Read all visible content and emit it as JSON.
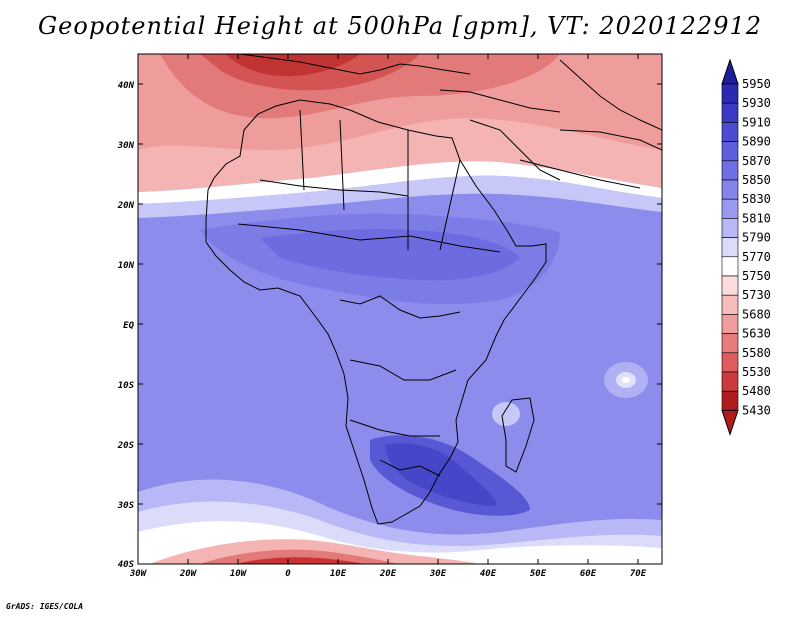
{
  "title": "Geopotential Height at 500hPa [gpm], VT: 2020122912",
  "footer": "GrADS: IGES/COLA",
  "map": {
    "lat_labels": [
      "40N",
      "30N",
      "20N",
      "10N",
      "EQ",
      "10S",
      "20S",
      "30S",
      "40S"
    ],
    "lon_labels": [
      "30W",
      "20W",
      "10W",
      "0",
      "10E",
      "20E",
      "30E",
      "40E",
      "50E",
      "60E",
      "70E"
    ],
    "lat_range": [
      -40,
      45
    ],
    "lon_range": [
      -30,
      75
    ]
  },
  "colorbar": {
    "levels": [
      "5950",
      "5930",
      "5910",
      "5890",
      "5870",
      "5850",
      "5830",
      "5810",
      "5790",
      "5770",
      "5750",
      "5730",
      "5680",
      "5630",
      "5580",
      "5530",
      "5480",
      "5430"
    ],
    "colors": [
      "#1e1e9a",
      "#2a2ab0",
      "#3a3ac4",
      "#4c4cd2",
      "#5e5edc",
      "#7070e4",
      "#8484ea",
      "#9a9af0",
      "#b8b8f6",
      "#dcdcfa",
      "#ffffff",
      "#fcdcdc",
      "#f7bcbc",
      "#f19c9c",
      "#e87c7c",
      "#de5c5c",
      "#cc3c3c",
      "#b01c1c"
    ]
  },
  "colors": {
    "deep_blue": "#4646c8",
    "blue": "#8c8cec",
    "pale_blue": "#c8c8f8",
    "pink": "#f0a0a0",
    "red": "#c83232"
  }
}
